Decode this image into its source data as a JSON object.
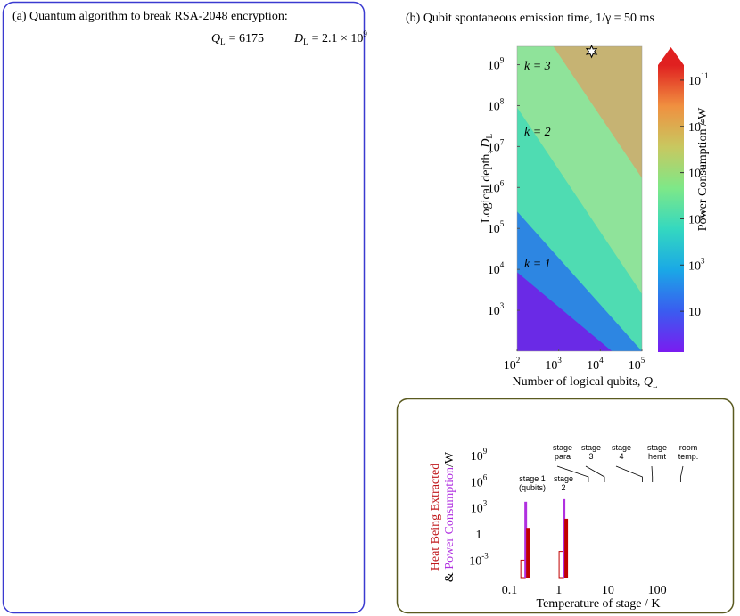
{
  "panel_a": {
    "title": "(a) Quantum algorithm to break RSA-2048 encryption:",
    "metrics": [
      {
        "symbol": "Q",
        "subscript": "L",
        "value": 6175,
        "value_label": "= 6175"
      },
      {
        "symbol": "D",
        "subscript": "L",
        "value": 2100000000,
        "value_label": "= 2.1 × 10",
        "exponent": "9"
      }
    ]
  },
  "chart_data": [
    {
      "type": "heatmap",
      "title": "(b) Qubit spontaneous emission time, 1/γ = 50  ms",
      "xlabel": {
        "text": "Number of logical qubits, ",
        "symbol": "Q",
        "subscript": "L"
      },
      "ylabel": {
        "text": "Logical depth, ",
        "symbol": "D",
        "subscript": "L"
      },
      "log_x": true,
      "log_y": true,
      "xlim": [
        100,
        100000
      ],
      "ylim": [
        100,
        2800000000
      ],
      "xticks": [
        {
          "value": 100,
          "label": "10",
          "exponent": "2"
        },
        {
          "value": 1000,
          "label": "10",
          "exponent": "3"
        },
        {
          "value": 10000,
          "label": "10",
          "exponent": "4"
        },
        {
          "value": 100000,
          "label": "10",
          "exponent": "5"
        }
      ],
      "yticks": [
        {
          "value": 1000,
          "label": "10",
          "exponent": "3"
        },
        {
          "value": 10000,
          "label": "10",
          "exponent": "4"
        },
        {
          "value": 100000,
          "label": "10",
          "exponent": "5"
        },
        {
          "value": 1000000,
          "label": "10",
          "exponent": "6"
        },
        {
          "value": 10000000,
          "label": "10",
          "exponent": "7"
        },
        {
          "value": 100000000,
          "label": "10",
          "exponent": "8"
        },
        {
          "value": 1000000000,
          "label": "10",
          "exponent": "9"
        }
      ],
      "regions": [
        {
          "color": "#8fe39a",
          "points": [
            [
              100,
              100
            ],
            [
              100,
              2800000000
            ],
            [
              100000,
              2800000000
            ],
            [
              100000,
              100
            ]
          ]
        },
        {
          "color": "#4fdcb2",
          "points": [
            [
              100,
              100
            ],
            [
              100,
              90000000
            ],
            [
              100000,
              2500
            ],
            [
              100000,
              100
            ]
          ]
        },
        {
          "color": "#2d86e2",
          "points": [
            [
              100,
              100
            ],
            [
              100,
              260000
            ],
            [
              100000,
              100
            ]
          ]
        },
        {
          "color": "#6a2ae6",
          "points": [
            [
              100,
              100
            ],
            [
              100,
              8500
            ],
            [
              19000,
              100
            ]
          ]
        },
        {
          "color": "#c6b373",
          "points": [
            [
              740,
              2800000000
            ],
            [
              100000,
              2800000000
            ],
            [
              100000,
              1700000
            ]
          ]
        }
      ],
      "annotations": [
        "k = 3",
        "k = 2",
        "k = 1"
      ],
      "colorbar": {
        "label": "Power Consumption / W",
        "lim": [
          0.17,
          450000000000
        ],
        "colors": [
          "#7a1cf0",
          "#3a5cf0",
          "#1aa8e6",
          "#34d8c0",
          "#7ee888",
          "#c8c860",
          "#f09040",
          "#e02020"
        ],
        "ticks": [
          10,
          {
            "value": 1000,
            "label": "10",
            "exponent": "3"
          },
          {
            "value": 100000,
            "label": "10",
            "exponent": "5"
          },
          {
            "value": 10000000,
            "label": "10",
            "exponent": "7"
          },
          {
            "value": 1000000000,
            "label": "10",
            "exponent": "9"
          },
          {
            "value": 100000000000,
            "label": "10",
            "exponent": "11"
          }
        ]
      }
    },
    {
      "type": "bar",
      "ylabel": [
        {
          "text": "Heat Being Extracted",
          "color": "#c0181c"
        },
        {
          "text": "& ",
          "color": "#000000"
        },
        {
          "text": "Power Consumption",
          "color": "#b030e0"
        },
        {
          "text": "/W",
          "color": "#000000"
        }
      ],
      "xlabel": "Temperature of stage / K",
      "log_x": true,
      "log_y": true,
      "xlim": [
        0.07,
        600
      ],
      "ylim": [
        1e-05,
        13000000000
      ],
      "xticks": [
        0.1,
        1,
        10,
        100
      ],
      "yticks": [
        {
          "value": 0.001,
          "label": "10",
          "exponent": "-3"
        },
        1,
        {
          "value": 1000,
          "label": "10",
          "exponent": "3"
        },
        {
          "value": 1000000,
          "label": "10",
          "exponent": "6"
        },
        {
          "value": 1000000000,
          "label": "10",
          "exponent": "9"
        }
      ],
      "categories": [
        [
          "stage 1",
          "(qubits)"
        ],
        [
          "stage",
          "2"
        ],
        [
          "stage",
          "para"
        ],
        [
          "stage",
          "3"
        ],
        [
          "stage",
          "4"
        ],
        [
          "stage",
          "hemt"
        ],
        [
          "room",
          "temp."
        ]
      ],
      "x": [
        0.2,
        1.2,
        4,
        8.5,
        50,
        80,
        300
      ],
      "series": [
        {
          "color": "#c00000",
          "fill": "none",
          "values": [
            0.001,
            0.01,
            null,
            null,
            null,
            null,
            null
          ]
        },
        {
          "color": "#b030e0",
          "fill": "solid",
          "values": [
            5000,
            10000,
            null,
            null,
            null,
            null,
            null
          ]
        },
        {
          "color": "#c00000",
          "fill": "solid",
          "values": [
            5,
            56,
            null,
            null,
            null,
            null,
            null
          ]
        }
      ]
    }
  ]
}
